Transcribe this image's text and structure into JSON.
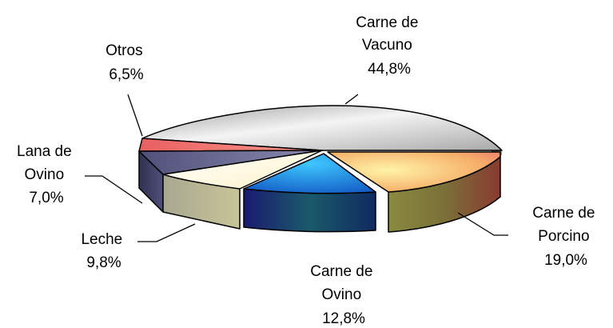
{
  "chart_data": {
    "type": "pie",
    "title": "",
    "unit": "%",
    "slices": [
      {
        "name": "Carne de Vacuno",
        "lines": [
          "Carne de",
          "Vacuno",
          "44,8%"
        ],
        "value": 44.8,
        "color": "#c8c8c8"
      },
      {
        "name": "Carne de Porcino",
        "lines": [
          "Carne de",
          "Porcino",
          "19,0%"
        ],
        "value": 19.0,
        "color": "#f0b078"
      },
      {
        "name": "Carne de Ovino",
        "lines": [
          "Carne de",
          "Ovino",
          "12,8%"
        ],
        "value": 12.8,
        "color": "#1e90e8"
      },
      {
        "name": "Leche",
        "lines": [
          "Leche",
          "9,8%"
        ],
        "value": 9.8,
        "color": "#fffbe0"
      },
      {
        "name": "Lana de Ovino",
        "lines": [
          "Lana de",
          "Ovino",
          "7,0%"
        ],
        "value": 7.0,
        "color": "#6e6e9e"
      },
      {
        "name": "Otros",
        "lines": [
          "Otros",
          "6,5%"
        ],
        "value": 6.5,
        "color": "#f08080"
      }
    ],
    "exploded": [
      "Carne de Porcino",
      "Carne de Ovino"
    ]
  }
}
